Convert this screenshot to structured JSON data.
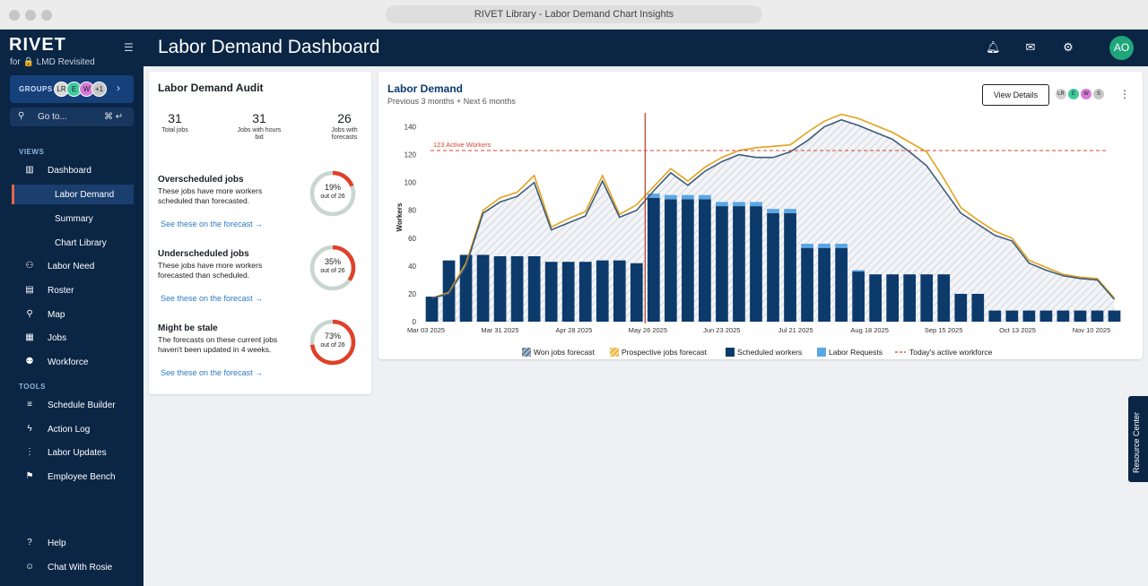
{
  "window": {
    "title": "RIVET Library - Labor Demand Chart Insights"
  },
  "brand": {
    "name": "RIVET",
    "sub": "for 🔒 LMD Revisited"
  },
  "groups": {
    "label": "GROUPS",
    "avatars": [
      "LR",
      "E",
      "W",
      "+1"
    ]
  },
  "goto": {
    "label": "Go to...",
    "shortcut": "⌘ ↵"
  },
  "sidebar": {
    "views_heading": "VIEWS",
    "tools_heading": "TOOLS",
    "items": [
      {
        "label": "Dashboard",
        "icon": "bar-chart-icon"
      },
      {
        "label": "Labor Demand"
      },
      {
        "label": "Summary"
      },
      {
        "label": "Chart Library"
      },
      {
        "label": "Labor Need",
        "icon": "person-add-icon"
      },
      {
        "label": "Roster",
        "icon": "roster-icon"
      },
      {
        "label": "Map",
        "icon": "map-pin-icon"
      },
      {
        "label": "Jobs",
        "icon": "building-icon"
      },
      {
        "label": "Workforce",
        "icon": "people-icon"
      },
      {
        "label": "Schedule Builder",
        "icon": "playlist-add-icon"
      },
      {
        "label": "Action Log",
        "icon": "lightning-icon"
      },
      {
        "label": "Labor Updates",
        "icon": "traffic-light-icon"
      },
      {
        "label": "Employee Bench",
        "icon": "flag-icon"
      },
      {
        "label": "Help",
        "icon": "help-icon"
      },
      {
        "label": "Chat With Rosie",
        "icon": "chat-icon"
      }
    ]
  },
  "header": {
    "title": "Labor Demand Dashboard",
    "user_initials": "AO"
  },
  "audit": {
    "title": "Labor Demand Audit",
    "stats": [
      {
        "value": "31",
        "label": "Total jobs"
      },
      {
        "value": "31",
        "label": "Jobs with hours bid"
      },
      {
        "value": "26",
        "label": "Jobs with forecasts"
      }
    ],
    "sections": [
      {
        "title": "Overscheduled jobs",
        "desc": "These jobs have more workers scheduled than forecasted.",
        "link": "See these on the forecast  →",
        "pct_text": "19%",
        "pct": 0.19,
        "of": "out of 26"
      },
      {
        "title": "Underscheduled jobs",
        "desc": "These jobs have more workers forecasted than scheduled.",
        "link": "See these on the forecast  →",
        "pct_text": "35%",
        "pct": 0.35,
        "of": "out of 26"
      },
      {
        "title": "Might be stale",
        "desc": "The forecasts on these current jobs haven't been updated in 4 weeks.",
        "link": "See these on the forecast  →",
        "pct_text": "73%",
        "pct": 0.73,
        "of": "out of 26"
      }
    ]
  },
  "chart_card": {
    "title": "Labor Demand",
    "subtitle": "Previous 3 months + Next 6 months",
    "button": "View Details",
    "avatars": [
      "LR",
      "E",
      "W",
      "S"
    ]
  },
  "resource_center": "Resource Center",
  "colors": {
    "navy": "#0b2545",
    "scheduled": "#0b3a6b",
    "requests": "#5aa7e6",
    "won": "#3d5a7a",
    "prospective": "#e3a21a",
    "workforce": "#d4452e"
  },
  "chart_data": {
    "type": "bar",
    "ylabel": "Workers",
    "ylim": [
      0,
      150
    ],
    "yticks": [
      0,
      20,
      40,
      60,
      80,
      100,
      120,
      140
    ],
    "xtick_labels": [
      "Mar 03 2025",
      "Mar 31 2025",
      "Apr 28 2025",
      "May 26 2025",
      "Jun 23 2025",
      "Jul 21 2025",
      "Aug 18 2025",
      "Sep 15 2025",
      "Oct 13 2025",
      "Nov 10 2025"
    ],
    "reference_line": {
      "label": "123 Active Workers",
      "value": 123
    },
    "today_index": 13,
    "series": [
      {
        "name": "Scheduled workers",
        "values": [
          18,
          44,
          48,
          48,
          47,
          47,
          47,
          43,
          43,
          43,
          44,
          44,
          42,
          89,
          88,
          88,
          88,
          83,
          83,
          83,
          78,
          78,
          53,
          53,
          53,
          36,
          34,
          34,
          34,
          34,
          34,
          20,
          20,
          8,
          8,
          8,
          8,
          8,
          8,
          8,
          8
        ]
      },
      {
        "name": "Labor Requests",
        "values": [
          0,
          0,
          0,
          0,
          0,
          0,
          0,
          0,
          0,
          0,
          0,
          0,
          0,
          3,
          3,
          3,
          3,
          3,
          3,
          3,
          3,
          3,
          3,
          3,
          3,
          1,
          0,
          0,
          0,
          0,
          0,
          0,
          0,
          0,
          0,
          0,
          0,
          0,
          0,
          0,
          0
        ]
      },
      {
        "name": "Won jobs forecast",
        "values": [
          17,
          20,
          40,
          78,
          86,
          90,
          100,
          66,
          71,
          76,
          101,
          75,
          80,
          94,
          107,
          98,
          108,
          115,
          120,
          118,
          118,
          122,
          130,
          140,
          145,
          141,
          136,
          131,
          122,
          112,
          95,
          78,
          70,
          62,
          58,
          42,
          37,
          33,
          31,
          30,
          16
        ]
      },
      {
        "name": "Prospective jobs forecast",
        "values": [
          17,
          21,
          42,
          80,
          89,
          93,
          105,
          68,
          74,
          79,
          105,
          77,
          84,
          97,
          110,
          101,
          111,
          118,
          123,
          125,
          126,
          127,
          136,
          144,
          149,
          146,
          141,
          136,
          129,
          122,
          103,
          82,
          73,
          65,
          60,
          44,
          39,
          34,
          32,
          31,
          17
        ]
      },
      {
        "name": "Today's active workforce",
        "values": [
          123
        ]
      }
    ]
  }
}
